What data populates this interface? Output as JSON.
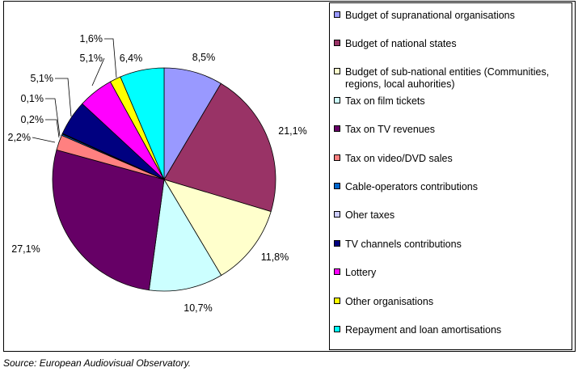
{
  "chart_data": {
    "type": "pie",
    "series": [
      {
        "label": "Budget of supranational organisations",
        "value": 8.5,
        "value_label": "8,5%",
        "color": "#9999ff"
      },
      {
        "label": "Budget of national states",
        "value": 21.1,
        "value_label": "21,1%",
        "color": "#993366"
      },
      {
        "label": "Budget of sub-national entities (Communities, regions, local auhorities)",
        "value": 11.8,
        "value_label": "11,8%",
        "color": "#ffffcc"
      },
      {
        "label": "Tax on film tickets",
        "value": 10.7,
        "value_label": "10,7%",
        "color": "#ccffff"
      },
      {
        "label": "Tax on TV revenues",
        "value": 27.1,
        "value_label": "27,1%",
        "color": "#660066"
      },
      {
        "label": "Tax on video/DVD sales",
        "value": 2.2,
        "value_label": "2,2%",
        "color": "#ff8080"
      },
      {
        "label": "Cable-operators contributions",
        "value": 0.2,
        "value_label": "0,2%",
        "color": "#0066cc"
      },
      {
        "label": "Oher taxes",
        "value": 0.1,
        "value_label": "0,1%",
        "color": "#ccccff"
      },
      {
        "label": "TV channels contributions",
        "value": 5.1,
        "value_label": "5,1%",
        "color": "#000080"
      },
      {
        "label": "Lottery",
        "value": 5.1,
        "value_label": "5,1%",
        "color": "#ff00ff"
      },
      {
        "label": "Other organisations",
        "value": 1.6,
        "value_label": "1,6%",
        "color": "#ffff00"
      },
      {
        "label": "Repayment and loan amortisations",
        "value": 6.4,
        "value_label": "6,4%",
        "color": "#00ffff"
      }
    ],
    "legend_position": "right"
  },
  "source": "Source: European Audiovisual Observatory."
}
